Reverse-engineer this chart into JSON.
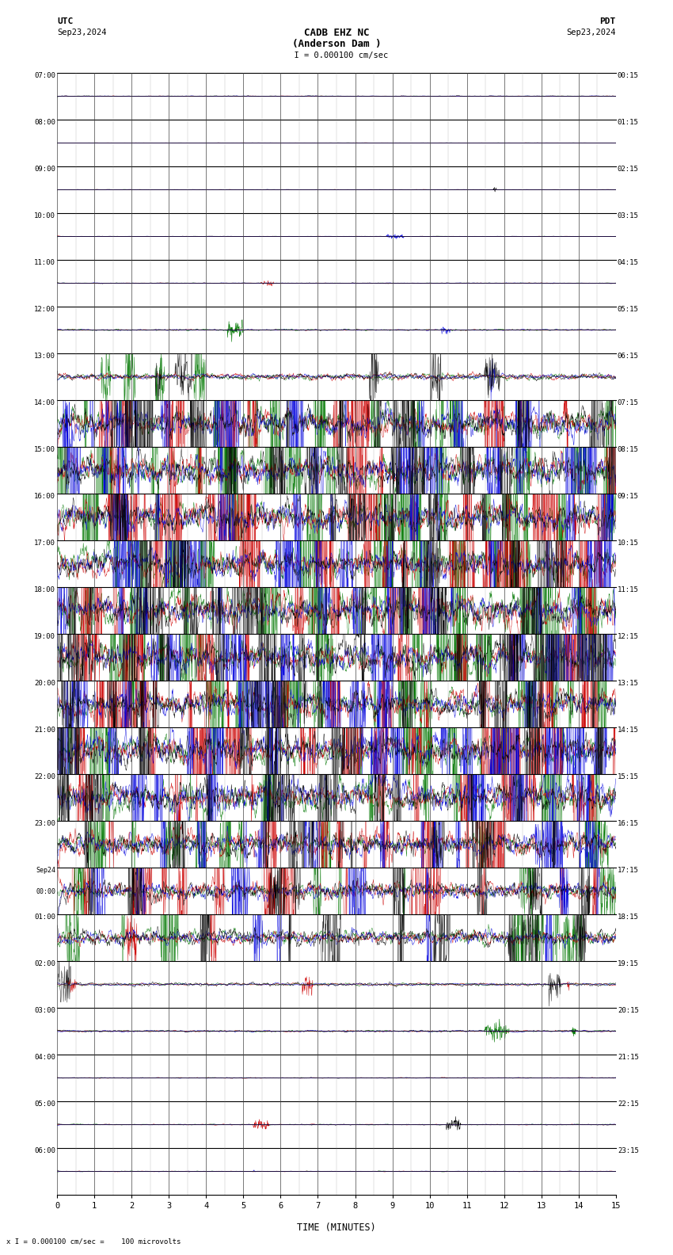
{
  "title_line1": "CADB EHZ NC",
  "title_line2": "(Anderson Dam )",
  "scale_text": "  I = 0.000100 cm/sec",
  "utc_label": "UTC",
  "pdt_label": "PDT",
  "date_left": "Sep23,2024",
  "date_right": "Sep23,2024",
  "bottom_label": "TIME (MINUTES)",
  "bottom_scale": "x I = 0.000100 cm/sec =    100 microvolts",
  "fig_width": 8.5,
  "fig_height": 15.84,
  "dpi": 100,
  "background_color": "#ffffff",
  "colors": [
    "#000000",
    "#0000dd",
    "#cc0000",
    "#007700"
  ],
  "utc_labels": [
    "07:00",
    "08:00",
    "09:00",
    "10:00",
    "11:00",
    "12:00",
    "13:00",
    "14:00",
    "15:00",
    "16:00",
    "17:00",
    "18:00",
    "19:00",
    "20:00",
    "21:00",
    "22:00",
    "23:00",
    "Sep24\n00:00",
    "01:00",
    "02:00",
    "03:00",
    "04:00",
    "05:00",
    "06:00"
  ],
  "pdt_labels": [
    "00:15",
    "01:15",
    "02:15",
    "03:15",
    "04:15",
    "05:15",
    "06:15",
    "07:15",
    "08:15",
    "09:15",
    "10:15",
    "11:15",
    "12:15",
    "13:15",
    "14:15",
    "15:15",
    "16:15",
    "17:15",
    "18:15",
    "19:15",
    "20:15",
    "21:15",
    "22:15",
    "23:15"
  ],
  "noise_levels": [
    0.018,
    0.012,
    0.012,
    0.012,
    0.018,
    0.035,
    0.2,
    0.8,
    1.0,
    1.0,
    1.0,
    1.0,
    1.0,
    1.0,
    1.0,
    1.0,
    0.85,
    0.6,
    0.45,
    0.1,
    0.04,
    0.025,
    0.025,
    0.018
  ],
  "xmin": 0,
  "xmax": 15,
  "xticks": [
    0,
    1,
    2,
    3,
    4,
    5,
    6,
    7,
    8,
    9,
    10,
    11,
    12,
    13,
    14,
    15
  ],
  "grid_color": "#444444",
  "minor_tick_color": "#888888"
}
